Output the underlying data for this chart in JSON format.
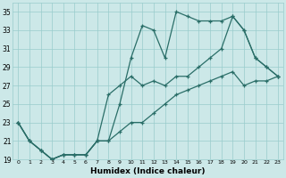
{
  "xlabel": "Humidex (Indice chaleur)",
  "background_color": "#cce8e8",
  "grid_color": "#99cccc",
  "line_color": "#2a6e68",
  "ylim": [
    19,
    36
  ],
  "yticks": [
    19,
    21,
    23,
    25,
    27,
    29,
    31,
    33,
    35
  ],
  "ytick_labels": [
    "19",
    "21",
    "23",
    "25",
    "27",
    "29",
    "31",
    "33",
    "35"
  ],
  "xlim": [
    -0.5,
    23.5
  ],
  "xticks": [
    0,
    1,
    2,
    3,
    4,
    5,
    6,
    7,
    8,
    9,
    10,
    11,
    12,
    13,
    14,
    15,
    16,
    17,
    18,
    19,
    20,
    21,
    22,
    23
  ],
  "series": [
    {
      "x": [
        0,
        1,
        2,
        3,
        4,
        5,
        6,
        7,
        8,
        9,
        10,
        11,
        12,
        13,
        14,
        15,
        16,
        17,
        18,
        19,
        20,
        21,
        22,
        23
      ],
      "y": [
        23,
        21,
        20,
        19,
        19.5,
        19.5,
        19.5,
        21,
        21,
        25,
        30,
        33.5,
        33,
        30,
        35,
        34.5,
        34,
        34,
        34,
        34.5,
        33,
        30,
        29,
        28
      ]
    },
    {
      "x": [
        0,
        1,
        2,
        3,
        4,
        5,
        6,
        7,
        8,
        9,
        10,
        11,
        12,
        13,
        14,
        15,
        16,
        17,
        18,
        19,
        20,
        21,
        22,
        23
      ],
      "y": [
        23,
        21,
        20,
        19,
        19.5,
        19.5,
        19.5,
        21,
        26,
        27,
        28,
        27,
        27.5,
        27,
        28,
        28,
        29,
        30,
        31,
        34.5,
        33,
        30,
        29,
        28
      ]
    },
    {
      "x": [
        0,
        1,
        2,
        3,
        4,
        5,
        6,
        7,
        8,
        9,
        10,
        11,
        12,
        13,
        14,
        15,
        16,
        17,
        18,
        19,
        20,
        21,
        22,
        23
      ],
      "y": [
        23,
        21,
        20,
        19,
        19.5,
        19.5,
        19.5,
        21,
        21,
        22,
        23,
        23,
        24,
        25,
        26,
        26.5,
        27,
        27.5,
        28,
        28.5,
        27,
        27.5,
        27.5,
        28
      ]
    }
  ]
}
